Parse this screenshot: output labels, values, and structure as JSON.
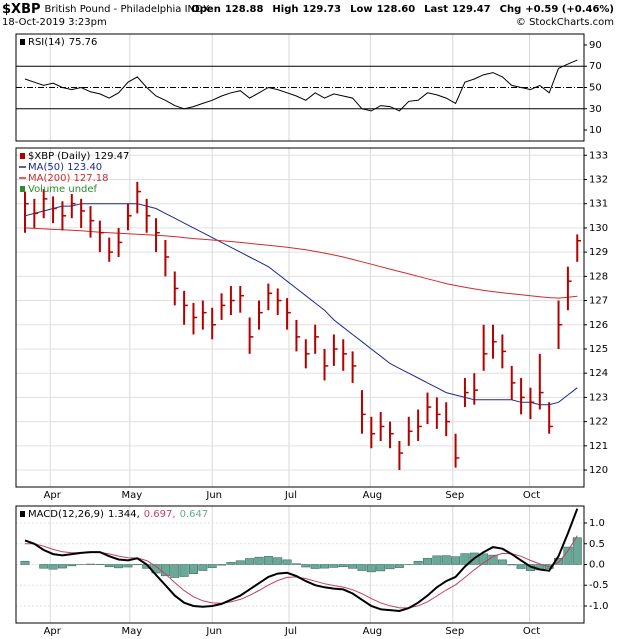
{
  "header": {
    "symbol": "$XBP",
    "name": "British Pound - Philadelphia INDX",
    "date": "18-Oct-2019 3:23pm",
    "credit": "© StockCharts.com",
    "quote": [
      {
        "label": "Open",
        "value": "128.88"
      },
      {
        "label": "High",
        "value": "129.73"
      },
      {
        "label": "Low",
        "value": "128.60"
      },
      {
        "label": "Last",
        "value": "129.47"
      },
      {
        "label": "Chg",
        "value": "+0.59 (+0.46%)"
      }
    ]
  },
  "chart_data": [
    {
      "type": "line",
      "ylim": [
        -0.35,
        100.35
      ],
      "yticks": [
        10,
        30,
        50,
        70,
        90
      ],
      "levels": [
        30,
        50,
        70
      ],
      "grid": false,
      "series": [
        {
          "name": "RSI(14)",
          "color": "#000000",
          "values": [
            58,
            55,
            52,
            54,
            50,
            48,
            50,
            46,
            44,
            40,
            45,
            55,
            60,
            50,
            42,
            38,
            33,
            30,
            32,
            35,
            38,
            42,
            45,
            47,
            40,
            45,
            50,
            48,
            45,
            42,
            38,
            45,
            40,
            44,
            42,
            40,
            30,
            28,
            33,
            32,
            28,
            37,
            38,
            45,
            43,
            40,
            35,
            55,
            58,
            62,
            64,
            60,
            52,
            50,
            48,
            52,
            45,
            68,
            72,
            75.76
          ]
        }
      ]
    },
    {
      "type": "ohlc",
      "ylim": [
        119.3,
        133.3
      ],
      "yticks": [
        120,
        121,
        122,
        123,
        124,
        125,
        126,
        127,
        128,
        129,
        130,
        131,
        132,
        133
      ],
      "grid": true,
      "xlim": [
        -0.96,
        59.72
      ],
      "xticks": [
        {
          "value": 2.7,
          "label": "Apr"
        },
        {
          "value": 11.2,
          "label": "May"
        },
        {
          "value": 20,
          "label": "Jun"
        },
        {
          "value": 28.2,
          "label": "Jul"
        },
        {
          "value": 36.9,
          "label": "Aug"
        },
        {
          "value": 45.7,
          "label": "Sep"
        },
        {
          "value": 53.9,
          "label": "Oct"
        }
      ],
      "series": [
        {
          "name": "$XBP (Daily)",
          "color": "#b40000",
          "high": [
            131.5,
            131.2,
            131.6,
            131.3,
            131.1,
            131.4,
            131.2,
            130.9,
            130.3,
            129.6,
            130.0,
            131.0,
            131.9,
            131.2,
            130.4,
            129.5,
            128.2,
            127.4,
            126.9,
            127.0,
            126.7,
            127.3,
            127.6,
            127.6,
            126.3,
            127.0,
            127.7,
            127.5,
            127.1,
            126.2,
            125.4,
            126.0,
            125.0,
            125.6,
            125.4,
            124.9,
            123.3,
            122.2,
            122.4,
            122.0,
            121.2,
            122.2,
            122.5,
            123.2,
            123.0,
            122.8,
            121.5,
            123.8,
            124.0,
            126.0,
            126.0,
            125.6,
            124.3,
            123.8,
            123.4,
            124.8,
            122.8,
            127.0,
            128.4,
            129.73
          ],
          "low": [
            129.8,
            130.0,
            130.4,
            130.2,
            129.9,
            130.4,
            130.0,
            129.6,
            129.0,
            128.6,
            128.8,
            129.9,
            130.6,
            129.8,
            129.0,
            128.0,
            126.8,
            126.0,
            125.6,
            125.8,
            125.4,
            126.2,
            126.4,
            126.5,
            124.8,
            125.8,
            126.6,
            126.4,
            125.8,
            124.9,
            124.2,
            124.8,
            123.7,
            124.3,
            124.1,
            123.6,
            121.5,
            120.9,
            121.2,
            120.9,
            120.0,
            121.0,
            121.2,
            121.9,
            121.7,
            121.4,
            120.1,
            122.6,
            122.7,
            124.1,
            124.6,
            124.2,
            122.9,
            122.3,
            122.1,
            122.5,
            121.5,
            125.0,
            126.6,
            128.6
          ],
          "close": [
            131.0,
            130.6,
            131.2,
            130.8,
            130.5,
            131.0,
            130.7,
            130.3,
            129.8,
            129.0,
            129.4,
            130.5,
            131.5,
            130.5,
            129.8,
            128.8,
            127.5,
            126.8,
            126.3,
            126.5,
            126.0,
            126.8,
            127.0,
            127.2,
            125.5,
            126.5,
            127.3,
            127.0,
            126.5,
            125.5,
            124.8,
            125.5,
            124.3,
            125.0,
            124.8,
            124.3,
            122.3,
            121.5,
            121.8,
            121.5,
            120.7,
            121.6,
            121.8,
            122.6,
            122.3,
            122.0,
            120.5,
            123.2,
            123.3,
            124.8,
            125.3,
            124.9,
            123.6,
            123.0,
            122.8,
            123.2,
            121.8,
            126.0,
            127.8,
            129.47
          ]
        },
        {
          "name": "MA(50) 123.40",
          "color": "#1c2a8c",
          "values": [
            130.5,
            130.6,
            130.7,
            130.8,
            130.9,
            130.9,
            131.0,
            131.0,
            131.0,
            131.0,
            131.0,
            131.0,
            131.0,
            130.9,
            130.8,
            130.6,
            130.4,
            130.2,
            130.0,
            129.8,
            129.6,
            129.4,
            129.2,
            129.0,
            128.8,
            128.6,
            128.4,
            128.1,
            127.8,
            127.5,
            127.2,
            126.9,
            126.6,
            126.2,
            125.9,
            125.6,
            125.3,
            125.0,
            124.7,
            124.4,
            124.2,
            124.0,
            123.8,
            123.6,
            123.4,
            123.2,
            123.1,
            123.0,
            122.9,
            122.9,
            122.9,
            122.9,
            122.9,
            122.8,
            122.8,
            122.7,
            122.7,
            122.8,
            123.1,
            123.4
          ]
        },
        {
          "name": "MA(200) 127.18",
          "color": "#d42a2a",
          "values": [
            130.0,
            129.98,
            129.96,
            129.94,
            129.92,
            129.9,
            129.88,
            129.85,
            129.82,
            129.8,
            129.78,
            129.76,
            129.74,
            129.72,
            129.7,
            129.67,
            129.64,
            129.6,
            129.56,
            129.53,
            129.5,
            129.47,
            129.44,
            129.4,
            129.36,
            129.32,
            129.28,
            129.24,
            129.2,
            129.15,
            129.1,
            129.03,
            128.96,
            128.88,
            128.8,
            128.7,
            128.6,
            128.5,
            128.4,
            128.3,
            128.2,
            128.1,
            128.0,
            127.9,
            127.8,
            127.7,
            127.62,
            127.55,
            127.48,
            127.42,
            127.37,
            127.32,
            127.28,
            127.24,
            127.2,
            127.16,
            127.12,
            127.1,
            127.14,
            127.18
          ]
        },
        {
          "name": "Volume undef",
          "color": "#2e8b2e"
        }
      ]
    },
    {
      "type": "macd",
      "ylim": [
        -1.41,
        1.41
      ],
      "grid": true,
      "yticks": [
        {
          "value": -1,
          "label": "-1.0"
        },
        {
          "value": -0.5,
          "label": "-0.5"
        },
        {
          "value": 0,
          "label": "0.0"
        },
        {
          "value": 0.5,
          "label": "0.5"
        },
        {
          "value": 1,
          "label": "1.0"
        }
      ],
      "xticks": [
        {
          "value": 2.7,
          "label": "Apr"
        },
        {
          "value": 11.2,
          "label": "May"
        },
        {
          "value": 20,
          "label": "Jun"
        },
        {
          "value": 28.2,
          "label": "Jul"
        },
        {
          "value": 36.9,
          "label": "Aug"
        },
        {
          "value": 45.7,
          "label": "Sep"
        },
        {
          "value": 53.9,
          "label": "Oct"
        }
      ],
      "legend_labels": [
        "1.344,",
        "0.697,",
        "0.647"
      ],
      "series": [
        {
          "name": "MACD(12,26,9)",
          "color": "#000000",
          "values": [
            0.58,
            0.5,
            0.35,
            0.25,
            0.22,
            0.25,
            0.28,
            0.3,
            0.3,
            0.2,
            0.12,
            0.1,
            0.15,
            0,
            -0.25,
            -0.5,
            -0.75,
            -0.92,
            -1.0,
            -1.02,
            -1.0,
            -0.95,
            -0.85,
            -0.75,
            -0.6,
            -0.45,
            -0.3,
            -0.22,
            -0.2,
            -0.28,
            -0.4,
            -0.5,
            -0.55,
            -0.58,
            -0.6,
            -0.7,
            -0.85,
            -1.0,
            -1.08,
            -1.1,
            -1.12,
            -1.05,
            -0.92,
            -0.75,
            -0.55,
            -0.4,
            -0.3,
            -0.05,
            0.15,
            0.3,
            0.42,
            0.38,
            0.25,
            0.1,
            -0.05,
            -0.12,
            -0.15,
            0.2,
            0.75,
            1.344
          ]
        },
        {
          "color": "#c0406a",
          "values": [
            0.5,
            0.5,
            0.44,
            0.364,
            0.306,
            0.284,
            0.282,
            0.289,
            0.293,
            0.256,
            0.202,
            0.161,
            0.157,
            0.094,
            -0.044,
            -0.226,
            -0.436,
            -0.63,
            -0.778,
            -0.875,
            -0.925,
            -0.935,
            -0.901,
            -0.841,
            -0.745,
            -0.627,
            -0.496,
            -0.386,
            -0.312,
            -0.299,
            -0.339,
            -0.403,
            -0.462,
            -0.509,
            -0.545,
            -0.607,
            -0.704,
            -0.822,
            -0.925,
            -0.995,
            -1.045,
            -1.047,
            -0.996,
            -0.898,
            -0.759,
            -0.615,
            -0.489,
            -0.313,
            -0.128,
            0.043,
            0.194,
            0.268,
            0.261,
            0.197,
            0.098,
            0.011,
            -0.053,
            0.048,
            0.329,
            0.697
          ]
        },
        {
          "color": "#6aa898",
          "values": [
            0.08,
            0,
            -0.09,
            -0.114,
            -0.086,
            -0.034,
            -0.002,
            0.011,
            0.007,
            -0.056,
            -0.082,
            -0.061,
            -0.007,
            -0.094,
            -0.206,
            -0.274,
            -0.314,
            -0.29,
            -0.222,
            -0.145,
            -0.075,
            -0.015,
            0.051,
            0.091,
            0.145,
            0.177,
            0.196,
            0.166,
            0.112,
            0.019,
            -0.061,
            -0.097,
            -0.088,
            -0.071,
            -0.055,
            -0.093,
            -0.146,
            -0.178,
            -0.155,
            -0.105,
            -0.075,
            -0.003,
            0.076,
            0.148,
            0.209,
            0.215,
            0.189,
            0.263,
            0.278,
            0.257,
            0.226,
            0.112,
            -0.011,
            -0.097,
            -0.148,
            -0.131,
            -0.097,
            0.152,
            0.421,
            0.647
          ]
        }
      ]
    }
  ]
}
